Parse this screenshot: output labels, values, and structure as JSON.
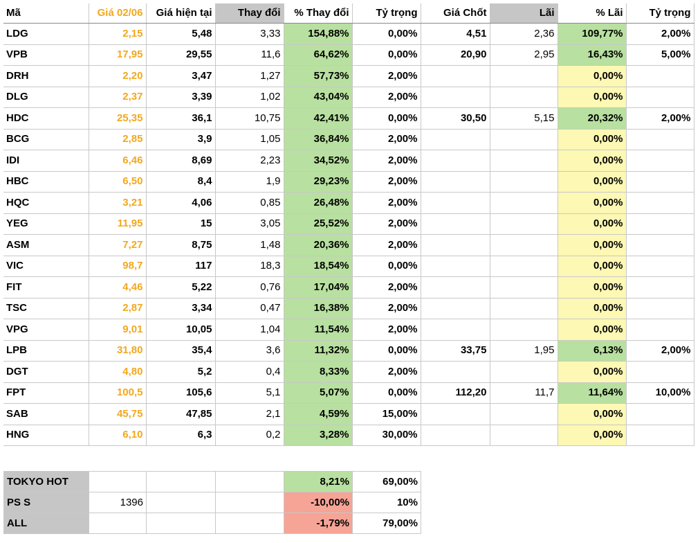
{
  "header": {
    "ma": "Mã",
    "gia_0206": "Giá 02/06",
    "gia_hien_tai": "Giá hiện tại",
    "thay_doi": "Thay đổi",
    "pct_thay_doi": "% Thay đổi",
    "ty_trong": "Tỷ trọng",
    "gia_chot": "Giá Chốt",
    "lai": "Lãi",
    "pct_lai": "% Lãi",
    "ty_trong2": "Tỷ trọng"
  },
  "rows": [
    {
      "ma": "LDG",
      "gia": "2,15",
      "hientai": "5,48",
      "thaydoi": "3,33",
      "pct": "154,88%",
      "tytrong": "0,00%",
      "giachot": "4,51",
      "lai": "2,36",
      "pctlai": "109,77%",
      "tytrong2": "2,00%"
    },
    {
      "ma": "VPB",
      "gia": "17,95",
      "hientai": "29,55",
      "thaydoi": "11,6",
      "pct": "64,62%",
      "tytrong": "0,00%",
      "giachot": "20,90",
      "lai": "2,95",
      "pctlai": "16,43%",
      "tytrong2": "5,00%"
    },
    {
      "ma": "DRH",
      "gia": "2,20",
      "hientai": "3,47",
      "thaydoi": "1,27",
      "pct": "57,73%",
      "tytrong": "2,00%",
      "giachot": "",
      "lai": "",
      "pctlai": "0,00%",
      "tytrong2": ""
    },
    {
      "ma": "DLG",
      "gia": "2,37",
      "hientai": "3,39",
      "thaydoi": "1,02",
      "pct": "43,04%",
      "tytrong": "2,00%",
      "giachot": "",
      "lai": "",
      "pctlai": "0,00%",
      "tytrong2": ""
    },
    {
      "ma": "HDC",
      "gia": "25,35",
      "hientai": "36,1",
      "thaydoi": "10,75",
      "pct": "42,41%",
      "tytrong": "0,00%",
      "giachot": "30,50",
      "lai": "5,15",
      "pctlai": "20,32%",
      "tytrong2": "2,00%"
    },
    {
      "ma": "BCG",
      "gia": "2,85",
      "hientai": "3,9",
      "thaydoi": "1,05",
      "pct": "36,84%",
      "tytrong": "2,00%",
      "giachot": "",
      "lai": "",
      "pctlai": "0,00%",
      "tytrong2": ""
    },
    {
      "ma": "IDI",
      "gia": "6,46",
      "hientai": "8,69",
      "thaydoi": "2,23",
      "pct": "34,52%",
      "tytrong": "2,00%",
      "giachot": "",
      "lai": "",
      "pctlai": "0,00%",
      "tytrong2": ""
    },
    {
      "ma": "HBC",
      "gia": "6,50",
      "hientai": "8,4",
      "thaydoi": "1,9",
      "pct": "29,23%",
      "tytrong": "2,00%",
      "giachot": "",
      "lai": "",
      "pctlai": "0,00%",
      "tytrong2": ""
    },
    {
      "ma": "HQC",
      "gia": "3,21",
      "hientai": "4,06",
      "thaydoi": "0,85",
      "pct": "26,48%",
      "tytrong": "2,00%",
      "giachot": "",
      "lai": "",
      "pctlai": "0,00%",
      "tytrong2": ""
    },
    {
      "ma": "YEG",
      "gia": "11,95",
      "hientai": "15",
      "thaydoi": "3,05",
      "pct": "25,52%",
      "tytrong": "2,00%",
      "giachot": "",
      "lai": "",
      "pctlai": "0,00%",
      "tytrong2": ""
    },
    {
      "ma": "ASM",
      "gia": "7,27",
      "hientai": "8,75",
      "thaydoi": "1,48",
      "pct": "20,36%",
      "tytrong": "2,00%",
      "giachot": "",
      "lai": "",
      "pctlai": "0,00%",
      "tytrong2": ""
    },
    {
      "ma": "VIC",
      "gia": "98,7",
      "hientai": "117",
      "thaydoi": "18,3",
      "pct": "18,54%",
      "tytrong": "0,00%",
      "giachot": "",
      "lai": "",
      "pctlai": "0,00%",
      "tytrong2": ""
    },
    {
      "ma": "FIT",
      "gia": "4,46",
      "hientai": "5,22",
      "thaydoi": "0,76",
      "pct": "17,04%",
      "tytrong": "2,00%",
      "giachot": "",
      "lai": "",
      "pctlai": "0,00%",
      "tytrong2": ""
    },
    {
      "ma": "TSC",
      "gia": "2,87",
      "hientai": "3,34",
      "thaydoi": "0,47",
      "pct": "16,38%",
      "tytrong": "2,00%",
      "giachot": "",
      "lai": "",
      "pctlai": "0,00%",
      "tytrong2": ""
    },
    {
      "ma": "VPG",
      "gia": "9,01",
      "hientai": "10,05",
      "thaydoi": "1,04",
      "pct": "11,54%",
      "tytrong": "2,00%",
      "giachot": "",
      "lai": "",
      "pctlai": "0,00%",
      "tytrong2": ""
    },
    {
      "ma": "LPB",
      "gia": "31,80",
      "hientai": "35,4",
      "thaydoi": "3,6",
      "pct": "11,32%",
      "tytrong": "0,00%",
      "giachot": "33,75",
      "lai": "1,95",
      "pctlai": "6,13%",
      "tytrong2": "2,00%"
    },
    {
      "ma": "DGT",
      "gia": "4,80",
      "hientai": "5,2",
      "thaydoi": "0,4",
      "pct": "8,33%",
      "tytrong": "2,00%",
      "giachot": "",
      "lai": "",
      "pctlai": "0,00%",
      "tytrong2": ""
    },
    {
      "ma": "FPT",
      "gia": "100,5",
      "hientai": "105,6",
      "thaydoi": "5,1",
      "pct": "5,07%",
      "tytrong": "0,00%",
      "giachot": "112,20",
      "lai": "11,7",
      "pctlai": "11,64%",
      "tytrong2": "10,00%"
    },
    {
      "ma": "SAB",
      "gia": "45,75",
      "hientai": "47,85",
      "thaydoi": "2,1",
      "pct": "4,59%",
      "tytrong": "15,00%",
      "giachot": "",
      "lai": "",
      "pctlai": "0,00%",
      "tytrong2": ""
    },
    {
      "ma": "HNG",
      "gia": "6,10",
      "hientai": "6,3",
      "thaydoi": "0,2",
      "pct": "3,28%",
      "tytrong": "30,00%",
      "giachot": "",
      "lai": "",
      "pctlai": "0,00%",
      "tytrong2": ""
    }
  ],
  "summary": [
    {
      "label": "TOKYO HOT",
      "col2": "",
      "col3": "",
      "col4": "",
      "pct": "8,21%",
      "tytrong": "69,00%",
      "tone": "green"
    },
    {
      "label": "PS S",
      "col2": "1396",
      "col3": "",
      "col4": "",
      "pct": "-10,00%",
      "tytrong": "10%",
      "tone": "red"
    },
    {
      "label": "ALL",
      "col2": "",
      "col3": "",
      "col4": "",
      "pct": "-1,79%",
      "tytrong": "79,00%",
      "tone": "red"
    }
  ]
}
